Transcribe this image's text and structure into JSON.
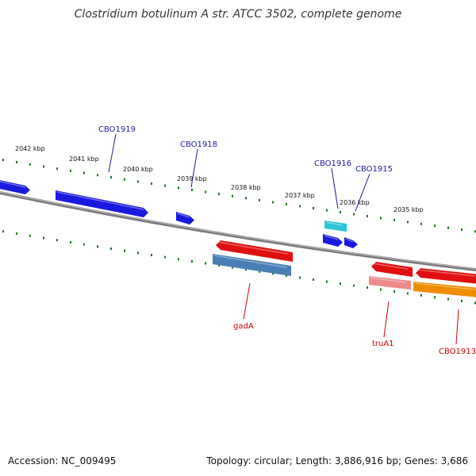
{
  "title": "Clostridium botulinum A str. ATCC 3502, complete genome",
  "footer": {
    "accession": "Accession: NC_009495",
    "summary": "Topology: circular; Length: 3,886,916 bp; Genes: 3,686"
  },
  "colors": {
    "backbone": "#888888",
    "tick_green": "#1a7a1a",
    "forward_gene": "#1a1adf",
    "cyan_gene": "#2bc4d8",
    "red_gene": "#e01010",
    "steel_blue": "#4a7fb5",
    "pink_gene": "#ee8a8a",
    "orange_gene": "#f08c00",
    "label_blue": "#1a1aa8",
    "label_red": "#cc0000"
  },
  "ruler_labels": [
    {
      "kbp": 2042,
      "text": "2042 kbp"
    },
    {
      "kbp": 2041,
      "text": "2041 kbp"
    },
    {
      "kbp": 2040,
      "text": "2040 kbp"
    },
    {
      "kbp": 2039,
      "text": "2039 kbp"
    },
    {
      "kbp": 2038,
      "text": "2038 kbp"
    },
    {
      "kbp": 2037,
      "text": "2037 kbp"
    },
    {
      "kbp": 2036,
      "text": "2036 kbp"
    },
    {
      "kbp": 2035,
      "text": "2035 kbp"
    }
  ],
  "gene_labels": [
    {
      "text": "CBO1919",
      "strand": "forward"
    },
    {
      "text": "CBO1918",
      "strand": "forward"
    },
    {
      "text": "CBO1916",
      "strand": "forward"
    },
    {
      "text": "CBO1915",
      "strand": "forward"
    },
    {
      "text": "gadA",
      "strand": "reverse"
    },
    {
      "text": "truA1",
      "strand": "reverse"
    },
    {
      "text": "CBO1913",
      "strand": "reverse"
    }
  ]
}
